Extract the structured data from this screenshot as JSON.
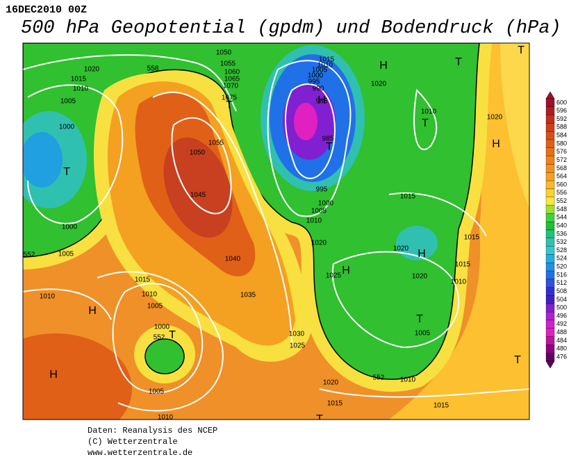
{
  "header": {
    "date": "16DEC2010 00Z",
    "title": "500 hPa Geopotential (gpdm) und Bodendruck (hPa)"
  },
  "map": {
    "pressure_labels": [
      1050,
      1055,
      1060,
      1065,
      1070,
      1075,
      1020,
      1015,
      1010,
      1005,
      1000,
      1000,
      1005,
      1050,
      1055,
      1045,
      1040,
      1035,
      1030,
      1025,
      1020,
      1025,
      1015,
      1010,
      1005,
      1000,
      1010,
      1005,
      1010,
      1015,
      1010,
      1005,
      1000,
      995,
      990,
      985,
      985,
      995,
      1000,
      1005,
      1010,
      1020,
      1010,
      1015,
      1020,
      1020,
      1015,
      1010,
      1015,
      1020,
      1005,
      1010,
      1020,
      1015,
      1015,
      552,
      552,
      552,
      558
    ],
    "center_labels": [
      "H",
      "T",
      "T",
      "T",
      "H",
      "T",
      "H",
      "T",
      "T",
      "H",
      "H",
      "T",
      "H",
      "T",
      "H",
      "T",
      "T"
    ]
  },
  "legend": {
    "ticks": [
      600,
      596,
      592,
      588,
      584,
      580,
      576,
      572,
      568,
      564,
      560,
      556,
      552,
      548,
      544,
      540,
      536,
      532,
      528,
      524,
      520,
      516,
      512,
      508,
      504,
      500,
      496,
      492,
      488,
      484,
      480,
      476
    ],
    "colors": [
      "#a0102a",
      "#b01c20",
      "#c0301c",
      "#cc401a",
      "#d85018",
      "#e06018",
      "#e87018",
      "#f08018",
      "#f49020",
      "#f8a020",
      "#fcb828",
      "#fcd030",
      "#f8e840",
      "#9ee030",
      "#40d040",
      "#20c030",
      "#20c080",
      "#30c0b0",
      "#30c8d0",
      "#20b0e0",
      "#2090e8",
      "#2070e8",
      "#3050e0",
      "#3030d0",
      "#4020c0",
      "#8020d0",
      "#b020d0",
      "#d020d0",
      "#e020c0",
      "#c010a0",
      "#900080",
      "#600060"
    ]
  },
  "footer": {
    "lines": [
      "Daten: Reanalysis des NCEP",
      "(C) Wetterzentrale",
      "www.wetterzentrale.de"
    ]
  }
}
